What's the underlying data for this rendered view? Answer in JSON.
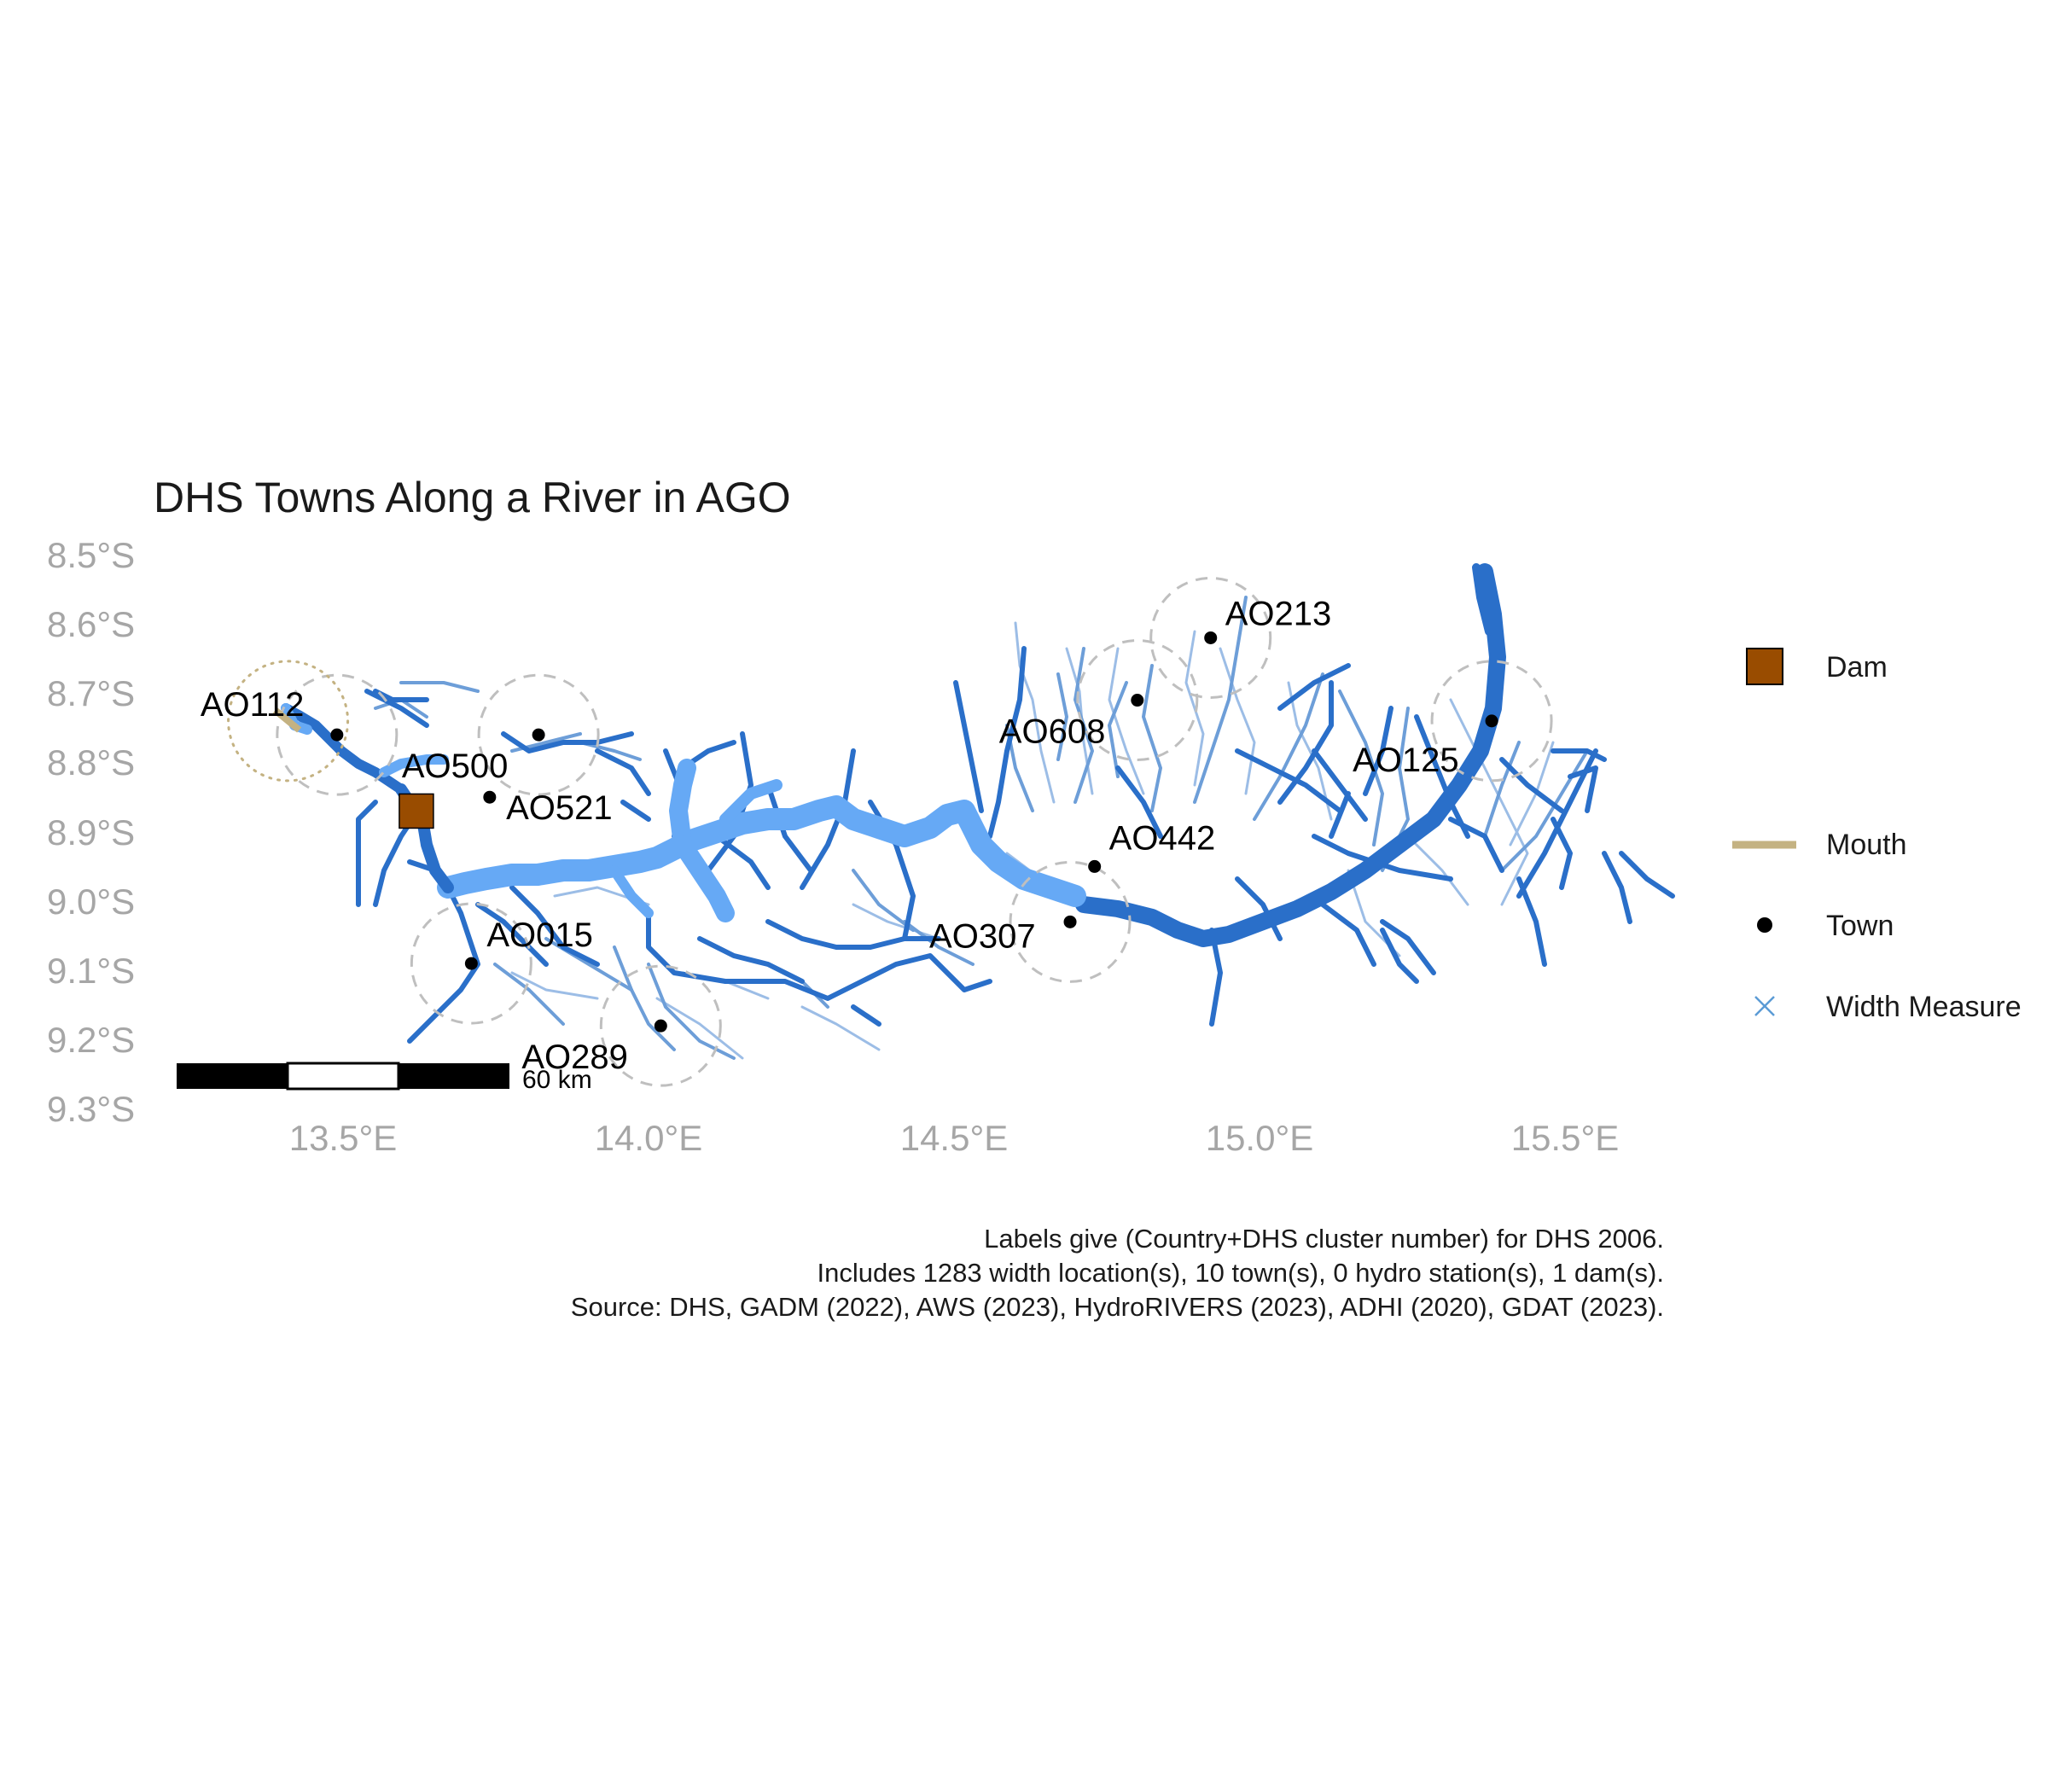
{
  "title": "DHS Towns Along a River in AGO",
  "axes": {
    "y_ticks": [
      "8.5°S",
      "8.6°S",
      "8.7°S",
      "8.8°S",
      "8.9°S",
      "9.0°S",
      "9.1°S",
      "9.2°S",
      "9.3°S"
    ],
    "x_ticks": [
      "13.5°E",
      "14.0°E",
      "14.5°E",
      "15.0°E",
      "15.5°E"
    ],
    "lon_range": [
      13.2,
      15.65
    ],
    "lat_range": [
      -9.3,
      -8.5
    ]
  },
  "towns": [
    {
      "label": "AO112",
      "lon": 13.49,
      "lat": -8.76,
      "circle": "dotted"
    },
    {
      "label": "AO500",
      "lon": 13.74,
      "lat": -8.85,
      "circle": "none"
    },
    {
      "label": "AO521",
      "lon": 13.82,
      "lat": -8.76,
      "circle": "dashed"
    },
    {
      "label": "AO015",
      "lon": 13.71,
      "lat": -9.09,
      "circle": "dashed"
    },
    {
      "label": "AO289",
      "lon": 14.02,
      "lat": -9.18,
      "circle": "dashed"
    },
    {
      "label": "AO608",
      "lon": 14.8,
      "lat": -8.71,
      "circle": "dashed"
    },
    {
      "label": "AO213",
      "lon": 14.92,
      "lat": -8.62,
      "circle": "dashed"
    },
    {
      "label": "AO442",
      "lon": 14.73,
      "lat": -8.95,
      "circle": "none"
    },
    {
      "label": "AO307",
      "lon": 14.69,
      "lat": -9.03,
      "circle": "dashed"
    },
    {
      "label": "AO125",
      "lon": 15.38,
      "lat": -8.74,
      "circle": "dashed"
    }
  ],
  "dam": {
    "lon": 13.62,
    "lat": -8.87
  },
  "mouth": {
    "lon": 13.41,
    "lat": -8.74
  },
  "legend": {
    "items": [
      {
        "label": "Dam",
        "symbol": "dam-square",
        "color": "#994c00"
      },
      {
        "label": "Mouth",
        "symbol": "mouth-line",
        "color": "#c4b282"
      },
      {
        "label": "Town",
        "symbol": "town-dot",
        "color": "#000000"
      },
      {
        "label": "Width Measure",
        "symbol": "cross",
        "color": "#5b9bd5"
      }
    ]
  },
  "scale_bar": {
    "label": "60 km"
  },
  "caption": {
    "line1": "Labels give (Country+DHS cluster number) for DHS 2006.",
    "line2": "Includes 1283 width location(s), 10 town(s), 0 hydro station(s), 1 dam(s).",
    "line3": "Source: DHS, GADM (2022), AWS (2023), HydroRIVERS (2023), ADHI (2020), GDAT (2023)."
  },
  "colors": {
    "river_main": "#2a6fc9",
    "river_wide": "#66a9f5",
    "river_trib": "#6d9ed8",
    "river_minor": "#9cbde6",
    "buffer": "#bfbfbf",
    "mouth_buffer": "#c4b282"
  }
}
